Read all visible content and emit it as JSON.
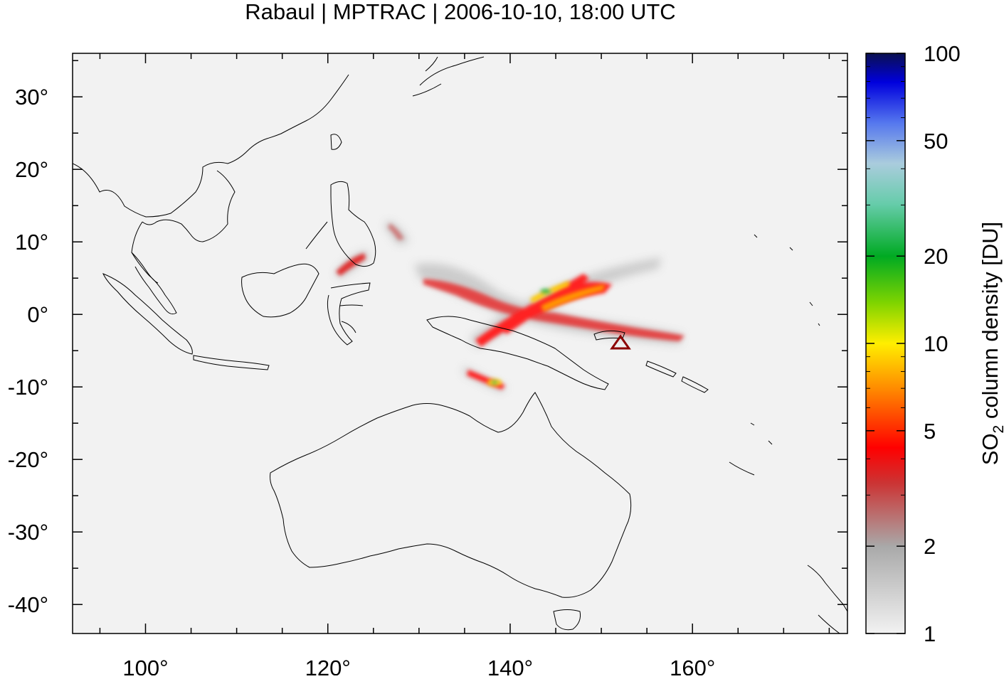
{
  "title": "Rabaul | MPTRAC | 2006-10-10, 18:00 UTC",
  "map": {
    "lon_range": [
      92,
      177
    ],
    "lat_range": [
      -44,
      36
    ],
    "lon_ticks": [
      {
        "value": 100,
        "label": "100°"
      },
      {
        "value": 120,
        "label": "120°"
      },
      {
        "value": 140,
        "label": "140°"
      },
      {
        "value": 160,
        "label": "160°"
      }
    ],
    "lat_ticks": [
      {
        "value": 30,
        "label": "30°"
      },
      {
        "value": 20,
        "label": "20°"
      },
      {
        "value": 10,
        "label": "10°"
      },
      {
        "value": 0,
        "label": "0°"
      },
      {
        "value": -10,
        "label": "-10°"
      },
      {
        "value": -20,
        "label": "-20°"
      },
      {
        "value": -30,
        "label": "-30°"
      },
      {
        "value": -40,
        "label": "-40°"
      }
    ],
    "background_color": "#f2f2f2",
    "volcano": {
      "lon": 152.2,
      "lat": -4.1,
      "color": "#8b0000"
    }
  },
  "colorbar": {
    "label_main": "SO",
    "label_sub": "2",
    "label_rest": " column density [DU]",
    "scale": "log",
    "range": [
      1,
      100
    ],
    "ticks": [
      {
        "value": 100,
        "label": "100"
      },
      {
        "value": 50,
        "label": "50"
      },
      {
        "value": 20,
        "label": "20"
      },
      {
        "value": 10,
        "label": "10"
      },
      {
        "value": 5,
        "label": "5"
      },
      {
        "value": 2,
        "label": "2"
      },
      {
        "value": 1,
        "label": "1"
      }
    ]
  }
}
